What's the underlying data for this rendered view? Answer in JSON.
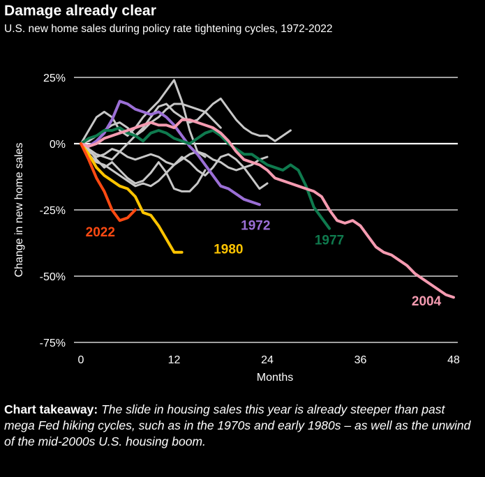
{
  "header": {
    "title": "Damage already clear",
    "subtitle": "U.S. new home sales during policy rate tightening cycles, 1972-2022"
  },
  "takeaway": {
    "label": "Chart takeaway:",
    "text": "The slide in housing sales this year is already steeper than past mega Fed hiking cycles, such as in the 1970s and early 1980s – as well as the unwind of the mid-2000s U.S. housing boom."
  },
  "colors": {
    "background": "#000000",
    "gray": "#c8c8c8",
    "2022": "#ff4a12",
    "1980": "#ffc400",
    "1972": "#9b6fd6",
    "1977": "#0f7a4e",
    "2004": "#f59bb1"
  },
  "chart_data": {
    "type": "line",
    "xlabel": "Months",
    "ylabel": "Change in new home sales",
    "xlim": [
      0,
      48
    ],
    "ylim": [
      -75,
      25
    ],
    "xticks": [
      0,
      12,
      24,
      36,
      48
    ],
    "xtick_labels": [
      "0",
      "12",
      "24",
      "36",
      "48"
    ],
    "yticks": [
      25,
      0,
      -25,
      -50,
      -75
    ],
    "ytick_labels": [
      "25%",
      "0%",
      "-25%",
      "-50%",
      "-75%"
    ],
    "grid": "horizontal",
    "series": [
      {
        "name": "",
        "color": "#c8c8c8",
        "highlight": false,
        "x": [
          0,
          1,
          2,
          3,
          4,
          5,
          6,
          7,
          8,
          9,
          10,
          11,
          12,
          13,
          14,
          15,
          16
        ],
        "y": [
          0,
          5,
          10,
          12,
          10,
          5,
          3,
          6,
          10,
          13,
          16,
          20,
          24,
          16,
          5,
          -3,
          -5
        ]
      },
      {
        "name": "",
        "color": "#c8c8c8",
        "highlight": false,
        "x": [
          0,
          1,
          2,
          3,
          4,
          5,
          6,
          7,
          8,
          9,
          10,
          11,
          12,
          13,
          14,
          15,
          16,
          17,
          18,
          19,
          20,
          21,
          22,
          23,
          24,
          25,
          26,
          27
        ],
        "y": [
          0,
          -2,
          -4,
          -5,
          -6,
          -3,
          0,
          3,
          6,
          10,
          14,
          15,
          12,
          10,
          8,
          9,
          12,
          15,
          17,
          13,
          9,
          6,
          4,
          3,
          3,
          1,
          3,
          5
        ]
      },
      {
        "name": "",
        "color": "#c8c8c8",
        "highlight": false,
        "x": [
          0,
          1,
          2,
          3,
          4,
          5,
          6,
          7,
          8,
          9,
          10,
          11,
          12,
          13,
          14,
          15,
          16,
          17,
          18,
          19,
          20,
          21,
          22,
          23,
          24
        ],
        "y": [
          0,
          -3,
          -5,
          -4,
          -2,
          -3,
          -5,
          -6,
          -5,
          -4,
          -5,
          -7,
          -8,
          -6,
          -4,
          -3,
          -4,
          -6,
          -7,
          -9,
          -10,
          -9,
          -8,
          -6,
          -5
        ]
      },
      {
        "name": "",
        "color": "#c8c8c8",
        "highlight": false,
        "x": [
          0,
          1,
          2,
          3,
          4,
          5,
          6,
          7,
          8,
          9,
          10,
          11,
          12,
          13,
          14,
          15,
          16,
          17,
          18,
          19,
          20,
          21,
          22,
          23,
          24
        ],
        "y": [
          0,
          -4,
          -7,
          -8,
          -10,
          -12,
          -14,
          -16,
          -15,
          -16,
          -14,
          -11,
          -8,
          -5,
          -7,
          -10,
          -12,
          -9,
          -5,
          -4,
          -6,
          -9,
          -13,
          -17,
          -15
        ]
      },
      {
        "name": "",
        "color": "#c8c8c8",
        "highlight": false,
        "x": [
          0,
          1,
          2,
          3,
          4,
          5,
          6,
          7,
          8,
          9,
          10,
          11,
          12,
          13,
          14,
          15,
          16
        ],
        "y": [
          0,
          -2,
          -6,
          -9,
          -7,
          -10,
          -13,
          -15,
          -14,
          -11,
          -7,
          -11,
          -17,
          -18,
          -18,
          -15,
          -10
        ]
      },
      {
        "name": "",
        "color": "#c8c8c8",
        "highlight": false,
        "x": [
          0,
          1,
          2,
          3,
          4,
          5,
          6,
          7,
          8,
          9,
          10,
          11,
          12,
          13,
          14,
          15,
          16,
          17,
          18
        ],
        "y": [
          0,
          1,
          3,
          5,
          7,
          8,
          6,
          3,
          5,
          8,
          10,
          13,
          15,
          15,
          14,
          13,
          12,
          9,
          6
        ]
      },
      {
        "name": "1972",
        "color": "#9b6fd6",
        "highlight": true,
        "x": [
          0,
          1,
          2,
          3,
          4,
          5,
          6,
          7,
          8,
          9,
          10,
          11,
          12,
          13,
          14,
          15,
          16,
          17,
          18,
          19,
          20,
          21,
          22,
          23
        ],
        "y": [
          0,
          -1,
          1,
          4,
          9,
          16,
          15,
          13,
          12,
          11,
          12,
          10,
          7,
          3,
          -1,
          -4,
          -8,
          -12,
          -16,
          -17,
          -19,
          -21,
          -22,
          -23
        ],
        "label_x": 22.5,
        "label_y": -32.5
      },
      {
        "name": "1977",
        "color": "#0f7a4e",
        "highlight": true,
        "x": [
          0,
          1,
          2,
          3,
          4,
          5,
          6,
          7,
          8,
          9,
          10,
          11,
          12,
          13,
          14,
          15,
          16,
          17,
          18,
          19,
          20,
          21,
          22,
          23,
          24,
          25,
          26,
          27,
          28,
          29,
          30,
          31,
          32
        ],
        "y": [
          0,
          2,
          3,
          5,
          5,
          6,
          4,
          3,
          1,
          4,
          5,
          4,
          2,
          1,
          0,
          2,
          4,
          5,
          3,
          0,
          -2,
          -4,
          -4,
          -6,
          -8,
          -9,
          -10,
          -8,
          -10,
          -16,
          -24,
          -28,
          -32
        ],
        "label_x": 32,
        "label_y": -38
      },
      {
        "name": "1980",
        "color": "#ffc400",
        "highlight": true,
        "x": [
          0,
          1,
          2,
          3,
          4,
          5,
          6,
          7,
          8,
          9,
          10,
          11,
          12,
          13
        ],
        "y": [
          0,
          -4,
          -9,
          -12,
          -14,
          -16,
          -17,
          -20,
          -26,
          -27,
          -31,
          -36,
          -41,
          -41
        ],
        "label_x": 19,
        "label_y": -41.5
      },
      {
        "name": "2004",
        "color": "#f59bb1",
        "highlight": true,
        "x": [
          0,
          1,
          2,
          3,
          4,
          5,
          6,
          7,
          8,
          9,
          10,
          11,
          12,
          13,
          14,
          15,
          16,
          17,
          18,
          19,
          20,
          21,
          22,
          23,
          24,
          25,
          26,
          27,
          28,
          29,
          30,
          31,
          32,
          33,
          34,
          35,
          36,
          37,
          38,
          39,
          40,
          41,
          42,
          43,
          44,
          45,
          46,
          47,
          48
        ],
        "y": [
          0,
          -1,
          0,
          2,
          3,
          4,
          5,
          6,
          7,
          8,
          7,
          7,
          6,
          9,
          9,
          8,
          7,
          6,
          4,
          1,
          -3,
          -6,
          -7,
          -8,
          -10,
          -13,
          -14,
          -15,
          -16,
          -17,
          -18,
          -20,
          -25,
          -29,
          -30,
          -29,
          -31,
          -35,
          -39,
          -41,
          -42,
          -44,
          -46,
          -49,
          -51,
          -53,
          -55,
          -57,
          -58
        ],
        "label_x": 44.5,
        "label_y": -61
      },
      {
        "name": "2022",
        "color": "#ff4a12",
        "highlight": true,
        "x": [
          0,
          1,
          2,
          3,
          4,
          5,
          6,
          7
        ],
        "y": [
          0,
          -6,
          -13,
          -18,
          -25,
          -29,
          -28,
          -25
        ],
        "label_x": 2.5,
        "label_y": -35
      }
    ]
  }
}
